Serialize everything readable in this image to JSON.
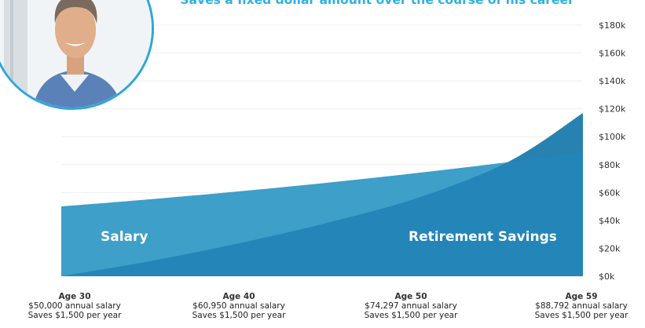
{
  "chart_data": {
    "type": "area",
    "subtitle": "Saves a fixed dollar amount over the course of his career",
    "y_axis": {
      "min": 0,
      "max": 180000,
      "position": "right",
      "ticks": [
        "$0k",
        "$20k",
        "$40k",
        "$60k",
        "$80k",
        "$100k",
        "$120k",
        "$140k",
        "$160k",
        "$180k"
      ]
    },
    "x_axis": {
      "min": 30,
      "max": 59
    },
    "grid": true,
    "series": [
      {
        "name": "Salary",
        "color": "#56c5ee",
        "x": [
          30,
          35,
          40,
          45,
          50,
          55,
          59
        ],
        "values": [
          50000,
          55200,
          60950,
          67300,
          74297,
          82000,
          88792
        ]
      },
      {
        "name": "Retirement Savings",
        "color": "#2485b8",
        "x": [
          30,
          35,
          40,
          45,
          50,
          55,
          59
        ],
        "values": [
          0,
          11000,
          24000,
          39000,
          57000,
          83000,
          117000
        ]
      }
    ],
    "annotations": [
      {
        "age": "Age 30",
        "salary": "$50,000 annual salary",
        "saves": "Saves $1,500 per year"
      },
      {
        "age": "Age 40",
        "salary": "$60,950 annual salary",
        "saves": "Saves $1,500 per year"
      },
      {
        "age": "Age 50",
        "salary": "$74,297 annual salary",
        "saves": "Saves $1,500 per year"
      },
      {
        "age": "Age 59",
        "salary": "$88,792 annual salary",
        "saves": "Saves $1,500 per year"
      }
    ]
  }
}
